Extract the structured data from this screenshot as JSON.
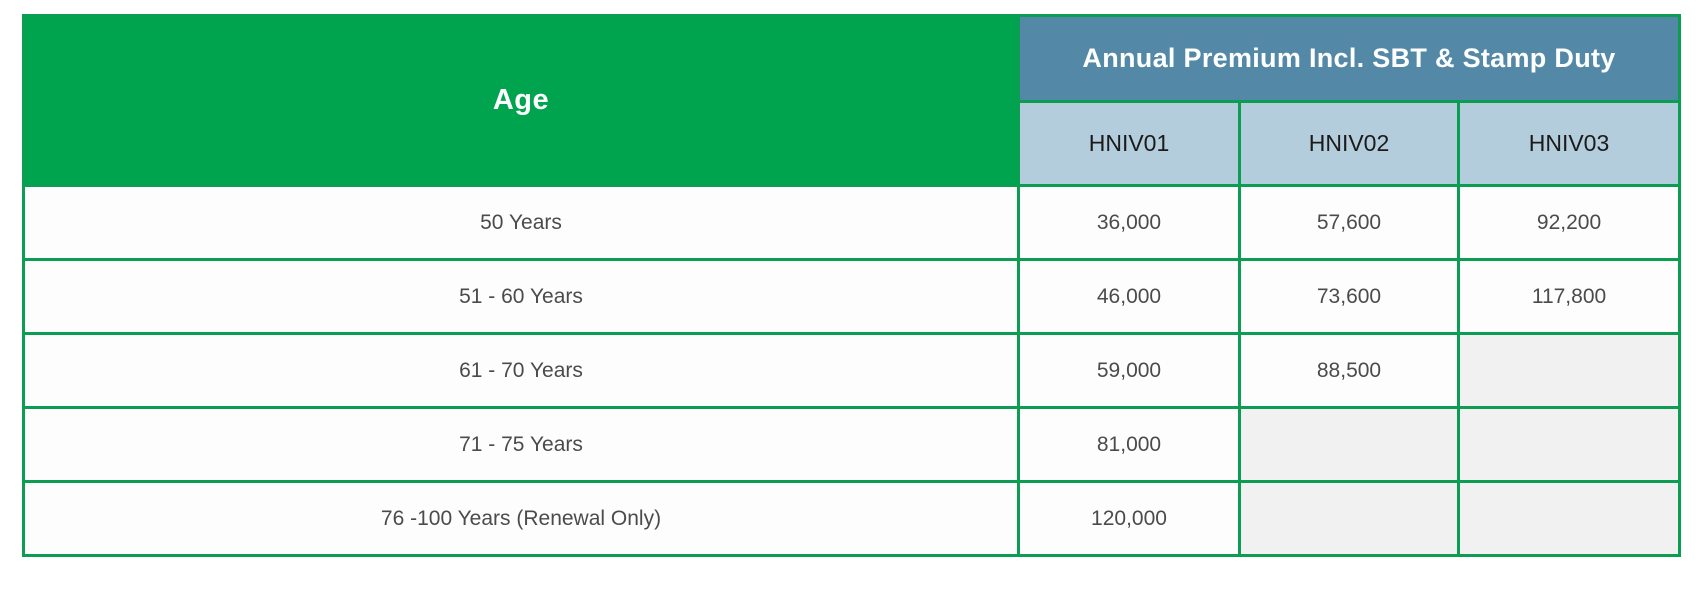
{
  "table": {
    "header": {
      "age_label": "Age",
      "premium_group_label": "Annual Premium Incl. SBT & Stamp Duty",
      "plan_columns": [
        "HNIV01",
        "HNIV02",
        "HNIV03"
      ]
    },
    "rows": [
      {
        "age": "50 Years",
        "values": [
          "36,000",
          "57,600",
          "92,200"
        ]
      },
      {
        "age": "51 - 60 Years",
        "values": [
          "46,000",
          "73,600",
          "117,800"
        ]
      },
      {
        "age": "61 - 70 Years",
        "values": [
          "59,000",
          "88,500",
          ""
        ]
      },
      {
        "age": "71 - 75 Years",
        "values": [
          "81,000",
          "",
          ""
        ]
      },
      {
        "age": "76 -100 Years (Renewal Only)",
        "values": [
          "120,000",
          "",
          ""
        ]
      }
    ],
    "colors": {
      "green_fill": "#00a44f",
      "grid_border_green": "#0b9e52",
      "group_header_blue": "#5389a7",
      "plan_header_blue": "#b3cddc",
      "empty_cell_gray": "#f1f1f1",
      "data_text": "#4b4b4b",
      "header_text": "#ffffff"
    }
  }
}
